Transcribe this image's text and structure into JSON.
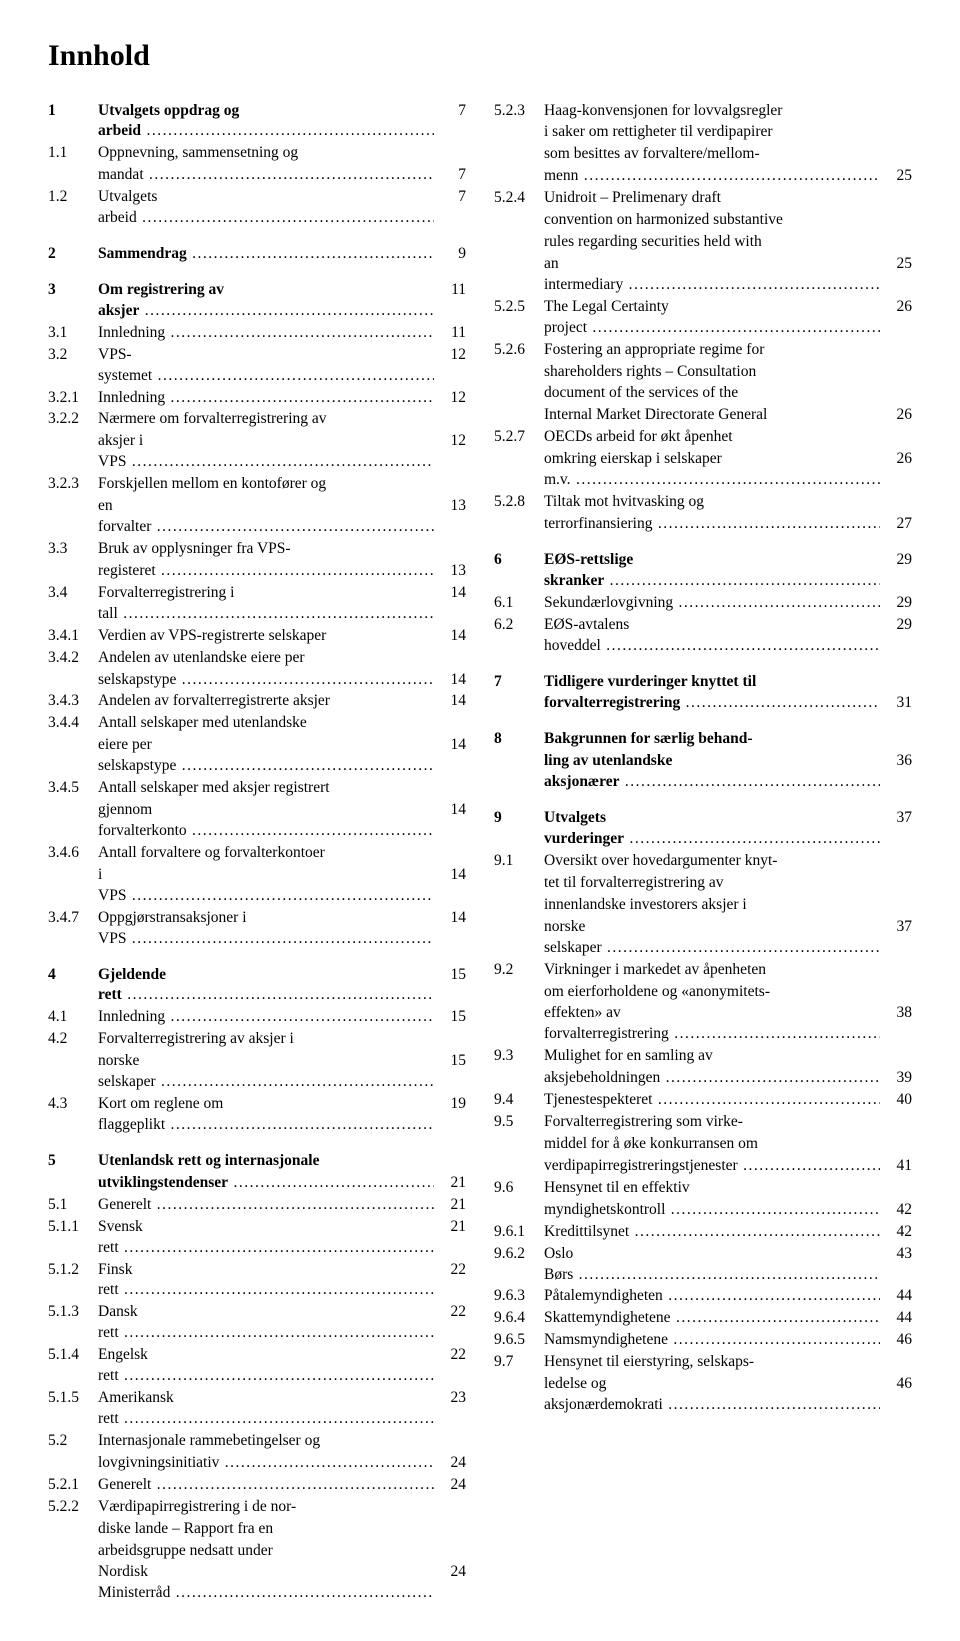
{
  "title": "Innhold",
  "left": [
    {
      "num": "1",
      "text": "Utvalgets oppdrag og arbeid",
      "page": "7",
      "bold": true
    },
    {
      "num": "1.1",
      "text": "Oppnevning, sammensetning og",
      "page": "",
      "cont": true
    },
    {
      "num": "",
      "text": "mandat",
      "page": "7"
    },
    {
      "num": "1.2",
      "text": "Utvalgets arbeid",
      "page": "7"
    },
    {
      "gap": true
    },
    {
      "num": "2",
      "text": "Sammendrag",
      "page": "9",
      "bold": true
    },
    {
      "gap": true
    },
    {
      "num": "3",
      "text": "Om registrering av aksjer",
      "page": "11",
      "bold": true
    },
    {
      "num": "3.1",
      "text": "Innledning",
      "page": "11"
    },
    {
      "num": "3.2",
      "text": "VPS-systemet",
      "page": "12"
    },
    {
      "num": "3.2.1",
      "text": "Innledning",
      "page": "12"
    },
    {
      "num": "3.2.2",
      "text": "Nærmere om forvalterregistrering av",
      "page": "",
      "cont": true
    },
    {
      "num": "",
      "text": "aksjer i VPS",
      "page": "12"
    },
    {
      "num": "3.2.3",
      "text": "Forskjellen mellom en kontofører og",
      "page": "",
      "cont": true
    },
    {
      "num": "",
      "text": "en forvalter",
      "page": "13"
    },
    {
      "num": "3.3",
      "text": "Bruk av opplysninger fra VPS-",
      "page": "",
      "cont": true
    },
    {
      "num": "",
      "text": "registeret",
      "page": "13"
    },
    {
      "num": "3.4",
      "text": "Forvalterregistrering i tall",
      "page": "14"
    },
    {
      "num": "3.4.1",
      "text": "Verdien av VPS-registrerte selskaper",
      "page": "14",
      "nodots": true
    },
    {
      "num": "3.4.2",
      "text": "Andelen av utenlandske eiere per",
      "page": "",
      "cont": true
    },
    {
      "num": "",
      "text": "selskapstype",
      "page": "14"
    },
    {
      "num": "3.4.3",
      "text": "Andelen av forvalterregistrerte aksjer",
      "page": "14",
      "nodots": true
    },
    {
      "num": "3.4.4",
      "text": "Antall selskaper med utenlandske",
      "page": "",
      "cont": true
    },
    {
      "num": "",
      "text": "eiere per selskapstype",
      "page": "14"
    },
    {
      "num": "3.4.5",
      "text": "Antall selskaper med aksjer registrert",
      "page": "",
      "cont": true
    },
    {
      "num": "",
      "text": "gjennom forvalterkonto",
      "page": "14"
    },
    {
      "num": "3.4.6",
      "text": "Antall forvaltere og forvalterkontoer",
      "page": "",
      "cont": true
    },
    {
      "num": "",
      "text": "i VPS",
      "page": "14"
    },
    {
      "num": "3.4.7",
      "text": "Oppgjørstransaksjoner i VPS",
      "page": "14"
    },
    {
      "gap": true
    },
    {
      "num": "4",
      "text": "Gjeldende rett",
      "page": "15",
      "bold": true
    },
    {
      "num": "4.1",
      "text": "Innledning",
      "page": "15"
    },
    {
      "num": "4.2",
      "text": "Forvalterregistrering av aksjer i",
      "page": "",
      "cont": true
    },
    {
      "num": "",
      "text": "norske selskaper",
      "page": "15"
    },
    {
      "num": "4.3",
      "text": "Kort om reglene om flaggeplikt",
      "page": "19"
    },
    {
      "gap": true
    },
    {
      "num": "5",
      "text": "Utenlandsk rett og internasjonale",
      "page": "",
      "bold": true,
      "cont": true
    },
    {
      "num": "",
      "text": "utviklingstendenser",
      "page": "21",
      "bold": true
    },
    {
      "num": "5.1",
      "text": "Generelt",
      "page": "21"
    },
    {
      "num": "5.1.1",
      "text": "Svensk rett",
      "page": "21"
    },
    {
      "num": "5.1.2",
      "text": "Finsk rett",
      "page": "22"
    },
    {
      "num": "5.1.3",
      "text": "Dansk rett",
      "page": "22"
    },
    {
      "num": "5.1.4",
      "text": "Engelsk rett",
      "page": "22"
    },
    {
      "num": "5.1.5",
      "text": "Amerikansk rett",
      "page": "23"
    },
    {
      "num": "5.2",
      "text": "Internasjonale rammebetingelser og",
      "page": "",
      "cont": true
    },
    {
      "num": "",
      "text": "lovgivningsinitiativ",
      "page": "24"
    },
    {
      "num": "5.2.1",
      "text": "Generelt",
      "page": "24"
    },
    {
      "num": "5.2.2",
      "text": "Værdipapirregistrering i de nor-",
      "page": "",
      "cont": true
    },
    {
      "num": "",
      "text": "diske lande – Rapport fra en",
      "page": "",
      "cont": true
    },
    {
      "num": "",
      "text": "arbeidsgruppe nedsatt under",
      "page": "",
      "cont": true
    },
    {
      "num": "",
      "text": "Nordisk Ministerråd",
      "page": "24"
    }
  ],
  "right": [
    {
      "num": "5.2.3",
      "text": "Haag-konvensjonen for lovvalgsregler",
      "page": "",
      "cont": true
    },
    {
      "num": "",
      "text": "i saker om rettigheter til verdipapirer",
      "page": "",
      "cont": true
    },
    {
      "num": "",
      "text": "som besittes av forvaltere/mellom-",
      "page": "",
      "cont": true
    },
    {
      "num": "",
      "text": "menn",
      "page": "25"
    },
    {
      "num": "5.2.4",
      "text": "Unidroit – Prelimenary draft",
      "page": "",
      "cont": true
    },
    {
      "num": "",
      "text": "convention on harmonized substantive",
      "page": "",
      "cont": true
    },
    {
      "num": "",
      "text": "rules regarding securities held with",
      "page": "",
      "cont": true
    },
    {
      "num": "",
      "text": "an intermediary",
      "page": "25"
    },
    {
      "num": "5.2.5",
      "text": "The Legal Certainty project",
      "page": "26"
    },
    {
      "num": "5.2.6",
      "text": "Fostering an appropriate regime for",
      "page": "",
      "cont": true
    },
    {
      "num": "",
      "text": "shareholders rights – Consultation",
      "page": "",
      "cont": true
    },
    {
      "num": "",
      "text": "document of the services of the",
      "page": "",
      "cont": true
    },
    {
      "num": "",
      "text": "Internal Market Directorate General",
      "page": "26",
      "nodots": true
    },
    {
      "num": "5.2.7",
      "text": "OECDs arbeid for økt åpenhet",
      "page": "",
      "cont": true
    },
    {
      "num": "",
      "text": "omkring eierskap i selskaper m.v.",
      "page": "26"
    },
    {
      "num": "5.2.8",
      "text": "Tiltak mot hvitvasking og",
      "page": "",
      "cont": true
    },
    {
      "num": "",
      "text": "terrorfinansiering",
      "page": "27"
    },
    {
      "gap": true
    },
    {
      "num": "6",
      "text": "EØS-rettslige skranker",
      "page": "29",
      "bold": true
    },
    {
      "num": "6.1",
      "text": "Sekundærlovgivning",
      "page": "29"
    },
    {
      "num": "6.2",
      "text": "EØS-avtalens hoveddel",
      "page": "29"
    },
    {
      "gap": true
    },
    {
      "num": "7",
      "text": "Tidligere vurderinger knyttet til",
      "page": "",
      "bold": true,
      "cont": true
    },
    {
      "num": "",
      "text": "forvalterregistrering",
      "page": "31",
      "bold": true
    },
    {
      "gap": true
    },
    {
      "num": "8",
      "text": "Bakgrunnen for særlig behand-",
      "page": "",
      "bold": true,
      "cont": true
    },
    {
      "num": "",
      "text": "ling av utenlandske aksjonærer",
      "page": "36",
      "bold": true
    },
    {
      "gap": true
    },
    {
      "num": "9",
      "text": "Utvalgets vurderinger",
      "page": "37",
      "bold": true
    },
    {
      "num": "9.1",
      "text": "Oversikt over hovedargumenter knyt-",
      "page": "",
      "cont": true
    },
    {
      "num": "",
      "text": "tet til forvalterregistrering av",
      "page": "",
      "cont": true
    },
    {
      "num": "",
      "text": "innenlandske investorers aksjer i",
      "page": "",
      "cont": true
    },
    {
      "num": "",
      "text": "norske selskaper",
      "page": "37"
    },
    {
      "num": "9.2",
      "text": "Virkninger i markedet av åpenheten",
      "page": "",
      "cont": true
    },
    {
      "num": "",
      "text": "om eierforholdene og «anonymitets-",
      "page": "",
      "cont": true
    },
    {
      "num": "",
      "text": "effekten» av forvalterregistrering",
      "page": "38"
    },
    {
      "num": "9.3",
      "text": "Mulighet for en samling av",
      "page": "",
      "cont": true
    },
    {
      "num": "",
      "text": "aksjebeholdningen",
      "page": "39"
    },
    {
      "num": "9.4",
      "text": "Tjenestespekteret",
      "page": "40"
    },
    {
      "num": "9.5",
      "text": "Forvalterregistrering som virke-",
      "page": "",
      "cont": true
    },
    {
      "num": "",
      "text": "middel for å øke konkurransen om",
      "page": "",
      "cont": true
    },
    {
      "num": "",
      "text": "verdipapirregistreringstjenester",
      "page": "41"
    },
    {
      "num": "9.6",
      "text": "Hensynet til en effektiv",
      "page": "",
      "cont": true
    },
    {
      "num": "",
      "text": "myndighetskontroll",
      "page": "42"
    },
    {
      "num": "9.6.1",
      "text": "Kredittilsynet",
      "page": "42"
    },
    {
      "num": "9.6.2",
      "text": "Oslo Børs",
      "page": "43"
    },
    {
      "num": "9.6.3",
      "text": "Påtalemyndigheten",
      "page": "44"
    },
    {
      "num": "9.6.4",
      "text": "Skattemyndighetene",
      "page": "44"
    },
    {
      "num": "9.6.5",
      "text": "Namsmyndighetene",
      "page": "46"
    },
    {
      "num": "9.7",
      "text": "Hensynet til eierstyring, selskaps-",
      "page": "",
      "cont": true
    },
    {
      "num": "",
      "text": "ledelse og aksjonærdemokrati",
      "page": "46"
    }
  ]
}
